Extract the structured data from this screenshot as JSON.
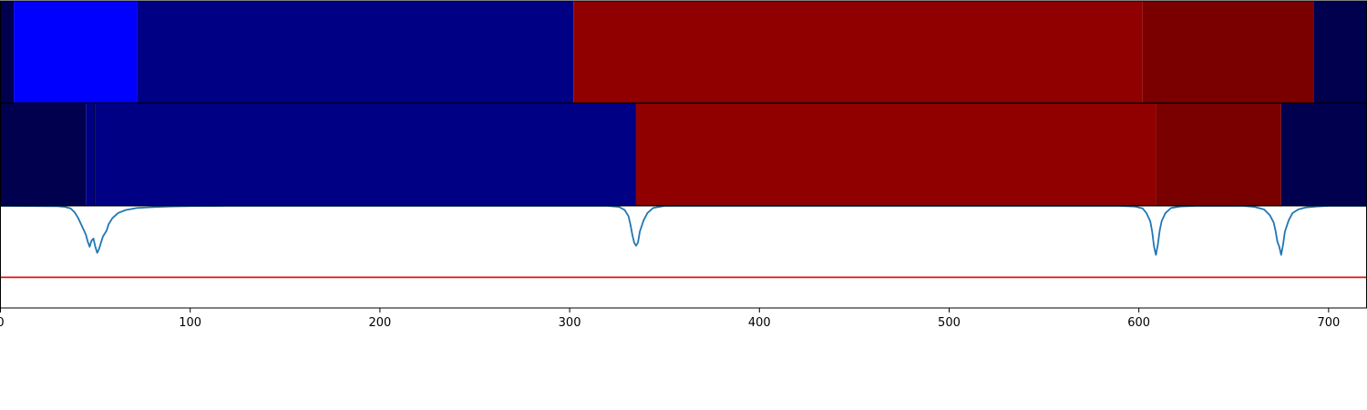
{
  "chart_data": {
    "type": "heatmap",
    "xlim": [
      0,
      720
    ],
    "x_ticks": [
      0,
      100,
      200,
      300,
      400,
      500,
      600,
      700
    ],
    "x_tick_labels": [
      "0",
      "100",
      "200",
      "300",
      "400",
      "500",
      "600",
      "700"
    ],
    "rows": [
      {
        "segments": [
          {
            "start": 0,
            "end": 7,
            "color": "#00004f"
          },
          {
            "start": 7,
            "end": 72,
            "color": "#0000ff"
          },
          {
            "start": 72,
            "end": 302,
            "color": "#000085"
          },
          {
            "start": 302,
            "end": 602,
            "color": "#900000"
          },
          {
            "start": 602,
            "end": 692,
            "color": "#7a0000"
          },
          {
            "start": 692,
            "end": 720,
            "color": "#00004f"
          }
        ]
      },
      {
        "segments": [
          {
            "start": 0,
            "end": 45,
            "color": "#00004f"
          },
          {
            "start": 45,
            "end": 49,
            "color": "#000085"
          },
          {
            "start": 49,
            "end": 50,
            "color": "#00004f"
          },
          {
            "start": 50,
            "end": 335,
            "color": "#000085"
          },
          {
            "start": 335,
            "end": 609,
            "color": "#900000"
          },
          {
            "start": 609,
            "end": 675,
            "color": "#7a0000"
          },
          {
            "start": 675,
            "end": 720,
            "color": "#00004f"
          }
        ]
      }
    ],
    "signal": {
      "color": "#1f77b4",
      "ylim": [
        0,
        1
      ],
      "points": [
        [
          0,
          1.0
        ],
        [
          30,
          0.997
        ],
        [
          34,
          0.99
        ],
        [
          37,
          0.975
        ],
        [
          39,
          0.94
        ],
        [
          41,
          0.88
        ],
        [
          43,
          0.8
        ],
        [
          45,
          0.72
        ],
        [
          46,
          0.65
        ],
        [
          47,
          0.6
        ],
        [
          48,
          0.66
        ],
        [
          49,
          0.68
        ],
        [
          50,
          0.6
        ],
        [
          51,
          0.54
        ],
        [
          52,
          0.58
        ],
        [
          53,
          0.64
        ],
        [
          54,
          0.7
        ],
        [
          56,
          0.76
        ],
        [
          57,
          0.82
        ],
        [
          59,
          0.88
        ],
        [
          62,
          0.93
        ],
        [
          66,
          0.96
        ],
        [
          72,
          0.98
        ],
        [
          80,
          0.988
        ],
        [
          90,
          0.995
        ],
        [
          100,
          0.998
        ],
        [
          120,
          1.0
        ],
        [
          320,
          1.0
        ],
        [
          326,
          0.99
        ],
        [
          329,
          0.96
        ],
        [
          331,
          0.9
        ],
        [
          332,
          0.82
        ],
        [
          333,
          0.72
        ],
        [
          334,
          0.64
        ],
        [
          335,
          0.61
        ],
        [
          336,
          0.64
        ],
        [
          337,
          0.75
        ],
        [
          339,
          0.86
        ],
        [
          341,
          0.93
        ],
        [
          344,
          0.98
        ],
        [
          350,
          1.0
        ],
        [
          590,
          1.0
        ],
        [
          598,
          0.993
        ],
        [
          602,
          0.975
        ],
        [
          604,
          0.93
        ],
        [
          606,
          0.85
        ],
        [
          607,
          0.75
        ],
        [
          608,
          0.6
        ],
        [
          609,
          0.52
        ],
        [
          610,
          0.62
        ],
        [
          611,
          0.76
        ],
        [
          612,
          0.85
        ],
        [
          614,
          0.93
        ],
        [
          617,
          0.98
        ],
        [
          622,
          0.995
        ],
        [
          630,
          1.0
        ],
        [
          655,
          1.0
        ],
        [
          661,
          0.99
        ],
        [
          666,
          0.965
        ],
        [
          669,
          0.91
        ],
        [
          671,
          0.84
        ],
        [
          672,
          0.76
        ],
        [
          673,
          0.65
        ],
        [
          674,
          0.6
        ],
        [
          675,
          0.52
        ],
        [
          676,
          0.62
        ],
        [
          677,
          0.75
        ],
        [
          679,
          0.86
        ],
        [
          681,
          0.93
        ],
        [
          684,
          0.965
        ],
        [
          688,
          0.985
        ],
        [
          694,
          0.995
        ],
        [
          700,
          1.0
        ],
        [
          720,
          1.0
        ]
      ]
    },
    "threshold": {
      "value": 0.3,
      "color": "#e01010"
    }
  }
}
